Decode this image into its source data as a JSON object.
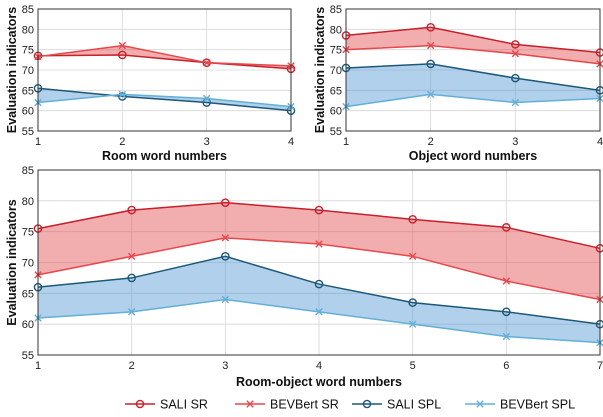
{
  "chart_data": [
    {
      "id": "room",
      "type": "line",
      "xlabel": "Room word numbers",
      "ylabel": "Evaluation indicators",
      "x": [
        1,
        2,
        3,
        4
      ],
      "xlim": [
        1,
        4
      ],
      "ylim": [
        55,
        85
      ],
      "yticks": [
        55,
        60,
        65,
        70,
        75,
        80,
        85
      ],
      "grid": true,
      "series": [
        {
          "name": "SALI SR",
          "values": [
            73.5,
            73.7,
            71.8,
            70.3
          ]
        },
        {
          "name": "BEVBert SR",
          "values": [
            73.3,
            76.0,
            71.8,
            71.0
          ]
        },
        {
          "name": "SALI SPL",
          "values": [
            65.5,
            63.5,
            62.0,
            60.0
          ]
        },
        {
          "name": "BEVBert SPL",
          "values": [
            62.0,
            64.0,
            63.0,
            61.0
          ]
        }
      ],
      "bands": [
        {
          "upper": "BEVBert SR",
          "lower": "SALI SR",
          "color": "#e24b4e"
        },
        {
          "upper": "SALI SPL",
          "lower": "BEVBert SPL",
          "color": "#4f96d4"
        }
      ]
    },
    {
      "id": "object",
      "type": "line",
      "xlabel": "Object word numbers",
      "ylabel": "Evaluation indicators",
      "x": [
        1,
        2,
        3,
        4
      ],
      "xlim": [
        1,
        4
      ],
      "ylim": [
        55,
        85
      ],
      "yticks": [
        55,
        60,
        65,
        70,
        75,
        80,
        85
      ],
      "grid": true,
      "series": [
        {
          "name": "SALI SR",
          "values": [
            78.5,
            80.5,
            76.3,
            74.3
          ]
        },
        {
          "name": "BEVBert SR",
          "values": [
            75.0,
            76.0,
            74.0,
            71.5
          ]
        },
        {
          "name": "SALI SPL",
          "values": [
            70.5,
            71.5,
            68.0,
            65.0
          ]
        },
        {
          "name": "BEVBert SPL",
          "values": [
            61.0,
            64.0,
            62.0,
            63.0
          ]
        }
      ],
      "bands": [
        {
          "upper": "SALI SR",
          "lower": "BEVBert SR",
          "color": "#e24b4e"
        },
        {
          "upper": "SALI SPL",
          "lower": "BEVBert SPL",
          "color": "#4f96d4"
        }
      ]
    },
    {
      "id": "room-object",
      "type": "line",
      "xlabel": "Room-object word numbers",
      "ylabel": "Evaluation indicators",
      "x": [
        1,
        2,
        3,
        4,
        5,
        6,
        7
      ],
      "xlim": [
        1,
        7
      ],
      "ylim": [
        55,
        85
      ],
      "yticks": [
        55,
        60,
        65,
        70,
        75,
        80,
        85
      ],
      "grid": true,
      "series": [
        {
          "name": "SALI SR",
          "values": [
            75.5,
            78.5,
            79.7,
            78.5,
            77.0,
            75.7,
            72.3
          ]
        },
        {
          "name": "BEVBert SR",
          "values": [
            68.0,
            71.0,
            74.0,
            73.0,
            71.0,
            67.0,
            64.0
          ]
        },
        {
          "name": "SALI SPL",
          "values": [
            66.0,
            67.5,
            71.0,
            66.5,
            63.5,
            62.0,
            60.0
          ]
        },
        {
          "name": "BEVBert SPL",
          "values": [
            61.0,
            62.0,
            64.0,
            62.0,
            60.0,
            58.0,
            57.0
          ]
        }
      ],
      "bands": [
        {
          "upper": "SALI SR",
          "lower": "BEVBert SR",
          "color": "#e24b4e"
        },
        {
          "upper": "SALI SPL",
          "lower": "BEVBert SPL",
          "color": "#4f96d4"
        }
      ]
    }
  ],
  "legend": {
    "placement": "bottom",
    "items": [
      {
        "label": "SALI SR",
        "marker": "circle",
        "color": "#c8202b"
      },
      {
        "label": "BEVBert SR",
        "marker": "x",
        "color": "#e8474b"
      },
      {
        "label": "SALI SPL",
        "marker": "circle",
        "color": "#1d5878"
      },
      {
        "label": "BEVBert SPL",
        "marker": "x",
        "color": "#62b0d8"
      }
    ]
  },
  "colors": {
    "SALI SR": "#c8202b",
    "BEVBert SR": "#e8474b",
    "SALI SPL": "#1d5878",
    "BEVBert SPL": "#62b0d8",
    "grid": "#d6d6d6",
    "axis": "#333333"
  }
}
